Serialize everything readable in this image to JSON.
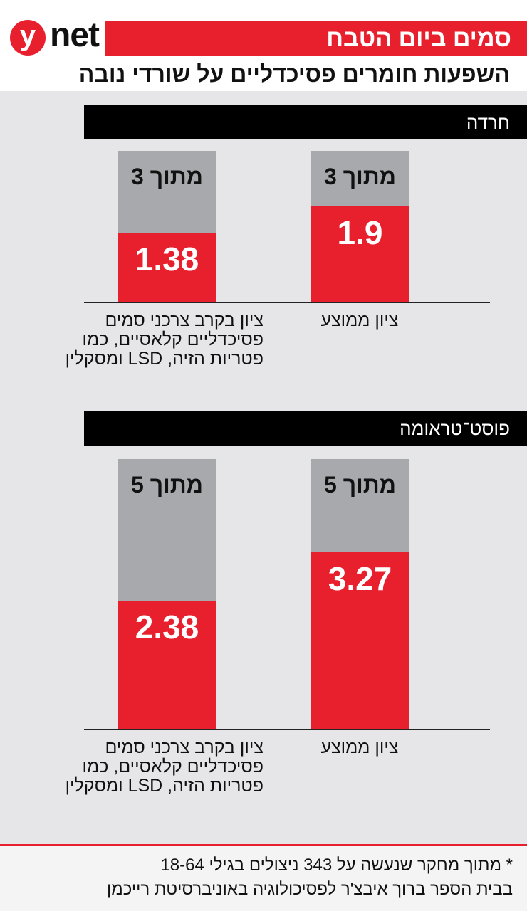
{
  "header": {
    "logo_y": "y",
    "logo_net": "net",
    "title": "סמים ביום הטבח",
    "subtitle": "השפעות חומרים פסיכדליים על שורדי נובה"
  },
  "chart_data": [
    {
      "type": "bar",
      "title": "חרדה",
      "categories": [
        "ציון ממוצע",
        "ציון בקרב צרכני סמים פסיכדליים קלאסיים, כמו פטריות הזיה, LSD ומסקלין"
      ],
      "values": [
        1.9,
        1.38
      ],
      "max_labels": [
        "מתוך 3",
        "מתוך 3"
      ],
      "ylim": [
        0,
        3
      ],
      "color": "#e8202e",
      "background_color": "#a7a9ac"
    },
    {
      "type": "bar",
      "title": "פוסט־טראומה",
      "categories": [
        "ציון ממוצע",
        "ציון בקרב צרכני סמים פסיכדליים קלאסיים, כמו פטריות הזיה, LSD ומסקלין"
      ],
      "values": [
        3.27,
        2.38
      ],
      "max_labels": [
        "מתוך 5",
        "מתוך 5"
      ],
      "ylim": [
        0,
        5
      ],
      "color": "#e8202e",
      "background_color": "#a7a9ac"
    }
  ],
  "footer": {
    "lines": [
      "* מתוך מחקר שנעשה על 343 ניצולים בגילי 18-64",
      "בבית הספר ברוך איבצ'ר לפסיכולוגיה באוניברסיטת רייכמן"
    ]
  }
}
